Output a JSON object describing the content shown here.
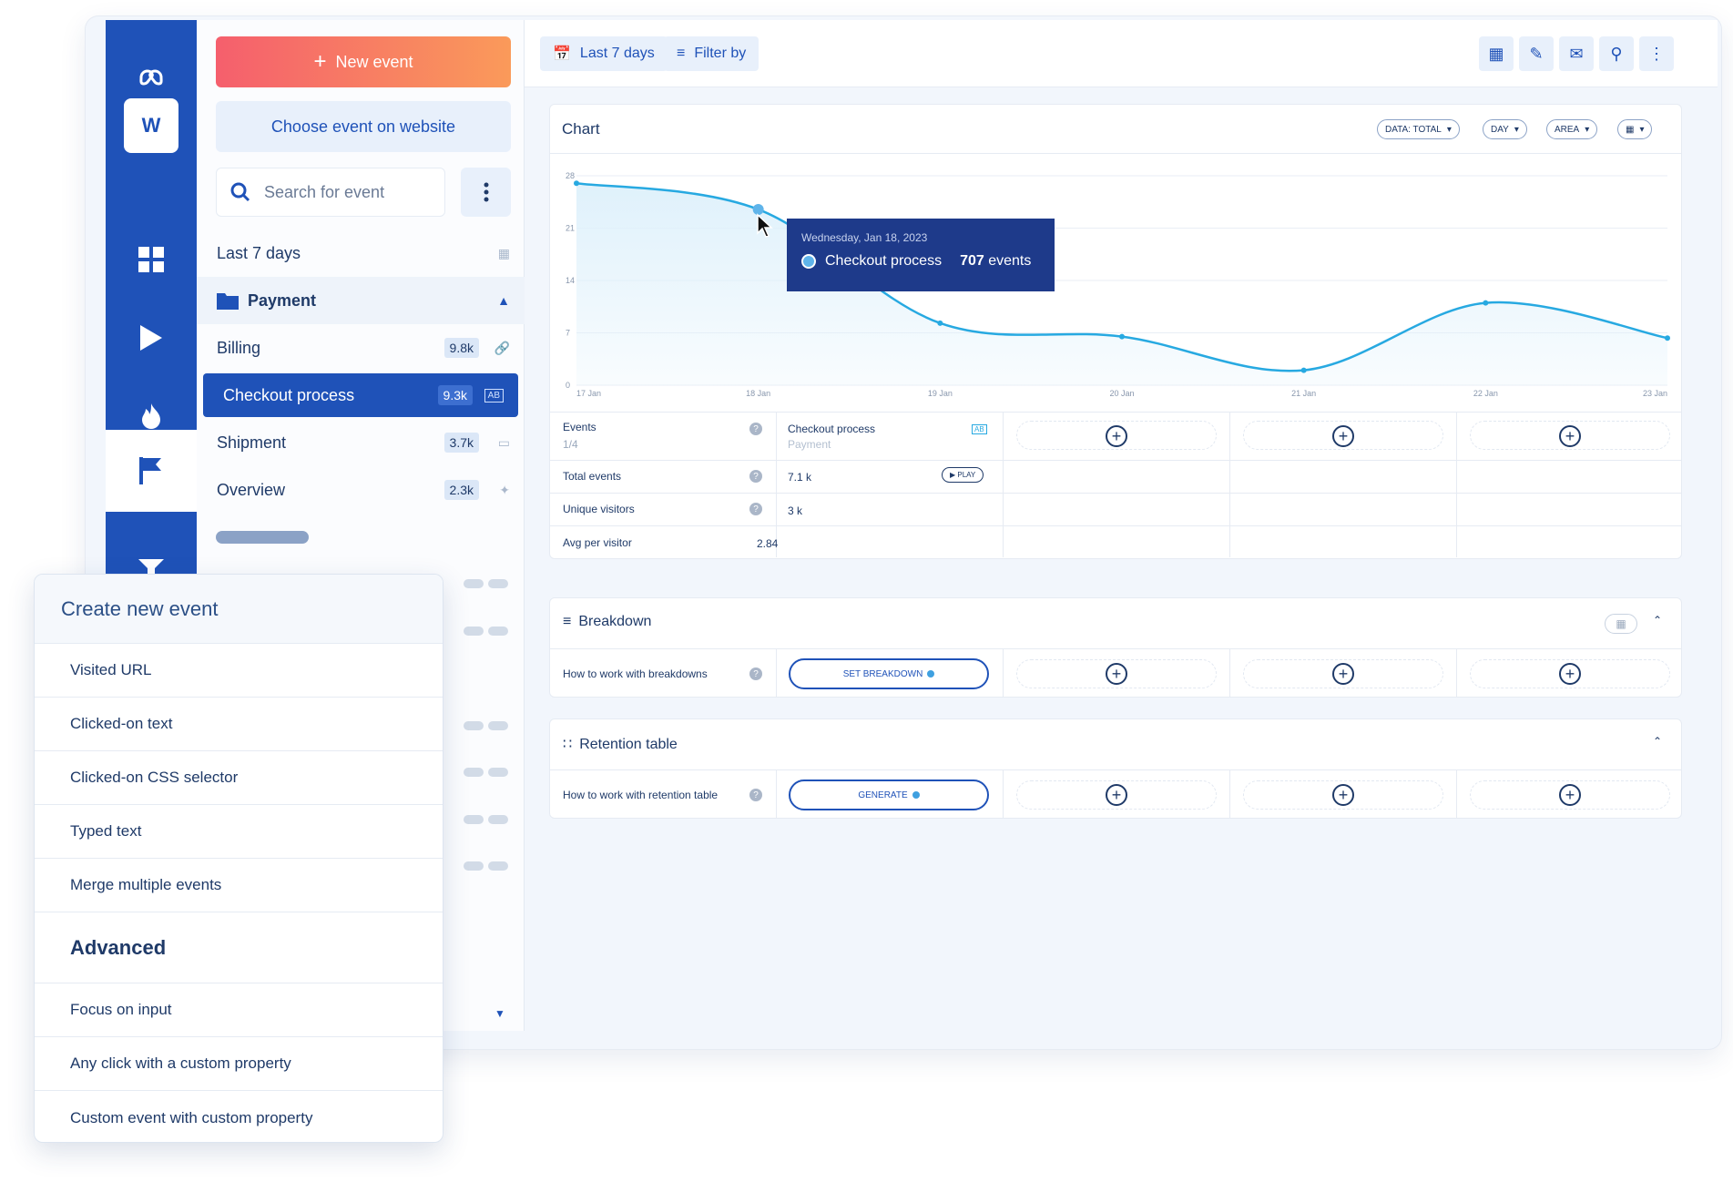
{
  "sidebar": {
    "new_event": "New event",
    "choose_event": "Choose event on website",
    "search_placeholder": "Search for event",
    "date_range": "Last 7 days",
    "folder": "Payment",
    "events": [
      {
        "label": "Billing",
        "count": "9.8k"
      },
      {
        "label": "Checkout process",
        "count": "9.3k"
      },
      {
        "label": "Shipment",
        "count": "3.7k"
      },
      {
        "label": "Overview",
        "count": "2.3k"
      }
    ]
  },
  "rail": {
    "workspace_initial": "W"
  },
  "toolbar": {
    "date_label": "Last 7 days",
    "filter_label": "Filter by"
  },
  "chart_card": {
    "title": "Chart",
    "chips": [
      "DATA: TOTAL",
      "DAY",
      "AREA"
    ],
    "tooltip": {
      "date": "Wednesday, Jan 18, 2023",
      "series": "Checkout process",
      "value": "707",
      "unit": "events"
    }
  },
  "chart_data": {
    "type": "area",
    "x": [
      "17 Jan",
      "18 Jan",
      "19 Jan",
      "20 Jan",
      "21 Jan",
      "22 Jan",
      "23 Jan"
    ],
    "series": [
      {
        "name": "Checkout process",
        "values": [
          27,
          23.5,
          8.3,
          6.5,
          2,
          11,
          6.3
        ]
      }
    ],
    "yticks": [
      0,
      7,
      14,
      21,
      28
    ],
    "ylim": [
      0,
      28
    ],
    "grid": true,
    "colors": {
      "line": "#27a9e1",
      "fill": "#dff1fb"
    }
  },
  "table": {
    "events_label": "Events",
    "events_sub": "1/4",
    "event_name": "Checkout process",
    "event_folder": "Payment",
    "rows": [
      {
        "label": "Total events",
        "value": "7.1 k"
      },
      {
        "label": "Unique visitors",
        "value": "3 k"
      },
      {
        "label": "Avg per visitor",
        "value": "2.84"
      }
    ],
    "play": "PLAY",
    "ab_badge": "AB"
  },
  "breakdown": {
    "title": "Breakdown",
    "help": "How to work with breakdowns",
    "button": "SET BREAKDOWN"
  },
  "retention": {
    "title": "Retention table",
    "help": "How to work with retention table",
    "button": "GENERATE"
  },
  "popup": {
    "title": "Create new event",
    "items": [
      "Visited URL",
      "Clicked-on text",
      "Clicked-on CSS selector",
      "Typed text",
      "Merge multiple events"
    ],
    "advanced_title": "Advanced",
    "advanced_items": [
      "Focus on input",
      "Any click with a custom property",
      "Custom event with custom property"
    ]
  },
  "colors": {
    "brand": "#1f52b8",
    "accent_gradient_start": "#f55f6d",
    "accent_gradient_end": "#fa9a5a",
    "navy": "#1e3a8a"
  }
}
